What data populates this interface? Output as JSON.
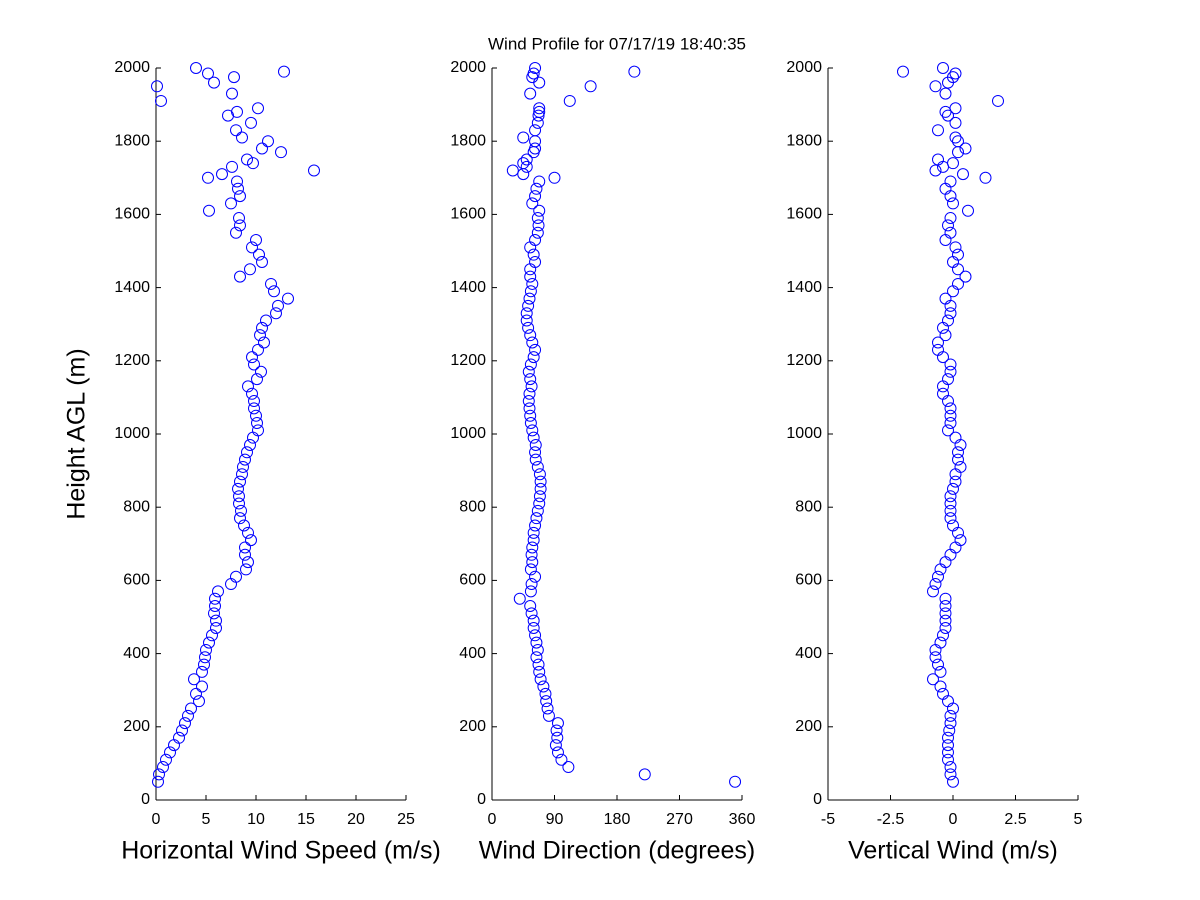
{
  "title": "Wind Profile for  07/17/19 18:40:35",
  "chart_data": [
    {
      "type": "scatter",
      "xlabel": "Horizontal Wind Speed (m/s)",
      "ylabel": "Height AGL (m)",
      "color": "#0000ff",
      "xlim": [
        0,
        25
      ],
      "xticks": [
        0,
        5,
        10,
        15,
        20,
        25
      ],
      "ylim": [
        0,
        2000
      ],
      "yticks": [
        0,
        200,
        400,
        600,
        800,
        1000,
        1200,
        1400,
        1600,
        1800,
        2000
      ],
      "x": [
        0.2,
        0.3,
        0.7,
        1.0,
        1.4,
        1.8,
        2.3,
        2.6,
        2.9,
        3.2,
        3.5,
        4.3,
        4.0,
        4.6,
        3.8,
        4.6,
        4.8,
        4.9,
        5.0,
        5.3,
        5.6,
        6.0,
        6.0,
        5.8,
        5.9,
        5.9,
        6.2,
        7.5,
        8.0,
        9.0,
        9.2,
        8.9,
        8.9,
        9.5,
        9.2,
        8.8,
        8.4,
        8.5,
        8.3,
        8.3,
        8.2,
        8.4,
        8.6,
        8.7,
        8.9,
        9.1,
        9.4,
        9.7,
        10.2,
        10.1,
        10.0,
        9.8,
        9.8,
        9.6,
        9.2,
        10.1,
        10.5,
        9.8,
        9.6,
        10.2,
        10.8,
        10.4,
        10.6,
        11.0,
        12.0,
        12.2,
        13.2,
        11.8,
        11.5,
        8.4,
        9.4,
        10.6,
        10.3,
        9.6,
        10.0,
        8.0,
        8.4,
        8.3,
        5.3,
        7.5,
        8.4,
        8.2,
        8.1,
        5.2,
        6.6,
        15.8,
        7.6,
        9.7,
        9.1,
        12.5,
        10.6,
        11.2,
        8.6,
        8.0,
        9.5,
        7.2,
        8.1,
        10.2,
        0.5,
        7.6,
        0.1,
        5.8,
        7.8,
        5.2,
        12.8,
        4.0
      ],
      "y": [
        50,
        70,
        90,
        110,
        130,
        150,
        170,
        190,
        210,
        230,
        250,
        270,
        290,
        310,
        330,
        350,
        370,
        390,
        410,
        430,
        450,
        470,
        490,
        510,
        530,
        550,
        570,
        590,
        610,
        630,
        650,
        670,
        690,
        710,
        730,
        750,
        770,
        790,
        810,
        830,
        850,
        870,
        890,
        910,
        930,
        950,
        970,
        990,
        1010,
        1030,
        1050,
        1070,
        1090,
        1110,
        1130,
        1150,
        1170,
        1190,
        1210,
        1230,
        1250,
        1270,
        1290,
        1310,
        1330,
        1350,
        1370,
        1390,
        1410,
        1430,
        1450,
        1470,
        1490,
        1510,
        1530,
        1550,
        1570,
        1590,
        1610,
        1630,
        1650,
        1670,
        1690,
        1700,
        1710,
        1720,
        1730,
        1740,
        1750,
        1770,
        1780,
        1800,
        1810,
        1830,
        1850,
        1870,
        1880,
        1890,
        1910,
        1930,
        1950,
        1960,
        1975,
        1985,
        1990,
        2000
      ]
    },
    {
      "type": "scatter",
      "xlabel": "Wind Direction (degrees)",
      "color": "#0000ff",
      "xlim": [
        0,
        360
      ],
      "xticks": [
        0,
        90,
        180,
        270,
        360
      ],
      "ylim": [
        0,
        2000
      ],
      "yticks": [
        0,
        200,
        400,
        600,
        800,
        1000,
        1200,
        1400,
        1600,
        1800,
        2000
      ],
      "x": [
        350,
        220,
        110,
        100,
        95,
        92,
        94,
        93,
        95,
        82,
        80,
        78,
        77,
        74,
        70,
        68,
        67,
        64,
        66,
        64,
        62,
        60,
        60,
        57,
        55,
        40,
        56,
        57,
        62,
        56,
        58,
        57,
        58,
        60,
        60,
        62,
        64,
        66,
        68,
        69,
        70,
        70,
        69,
        66,
        63,
        62,
        63,
        60,
        58,
        56,
        55,
        54,
        53,
        54,
        57,
        55,
        53,
        56,
        60,
        62,
        58,
        55,
        52,
        50,
        50,
        52,
        54,
        56,
        58,
        55,
        55,
        62,
        60,
        55,
        62,
        66,
        67,
        66,
        68,
        58,
        62,
        64,
        68,
        90,
        45,
        30,
        50,
        45,
        50,
        60,
        62,
        62,
        45,
        62,
        66,
        67,
        68,
        68,
        112,
        55,
        142,
        68,
        58,
        60,
        205,
        62
      ],
      "y": [
        50,
        70,
        90,
        110,
        130,
        150,
        170,
        190,
        210,
        230,
        250,
        270,
        290,
        310,
        330,
        350,
        370,
        390,
        410,
        430,
        450,
        470,
        490,
        510,
        530,
        550,
        570,
        590,
        610,
        630,
        650,
        670,
        690,
        710,
        730,
        750,
        770,
        790,
        810,
        830,
        850,
        870,
        890,
        910,
        930,
        950,
        970,
        990,
        1010,
        1030,
        1050,
        1070,
        1090,
        1110,
        1130,
        1150,
        1170,
        1190,
        1210,
        1230,
        1250,
        1270,
        1290,
        1310,
        1330,
        1350,
        1370,
        1390,
        1410,
        1430,
        1450,
        1470,
        1490,
        1510,
        1530,
        1550,
        1570,
        1590,
        1610,
        1630,
        1650,
        1670,
        1690,
        1700,
        1710,
        1720,
        1730,
        1740,
        1750,
        1770,
        1780,
        1800,
        1810,
        1830,
        1850,
        1870,
        1880,
        1890,
        1910,
        1930,
        1950,
        1960,
        1975,
        1985,
        1990,
        2000
      ]
    },
    {
      "type": "scatter",
      "xlabel": "Vertical Wind (m/s)",
      "color": "#0000ff",
      "xlim": [
        -5,
        5
      ],
      "xticks": [
        -5,
        -2.5,
        0,
        2.5,
        5
      ],
      "ylim": [
        0,
        2000
      ],
      "yticks": [
        0,
        200,
        400,
        600,
        800,
        1000,
        1200,
        1400,
        1600,
        1800,
        2000
      ],
      "x": [
        0,
        -0.1,
        -0.1,
        -0.2,
        -0.2,
        -0.2,
        -0.2,
        -0.15,
        -0.1,
        -0.1,
        0,
        -0.2,
        -0.4,
        -0.5,
        -0.8,
        -0.5,
        -0.6,
        -0.7,
        -0.7,
        -0.5,
        -0.4,
        -0.3,
        -0.3,
        -0.3,
        -0.3,
        -0.3,
        -0.8,
        -0.7,
        -0.6,
        -0.5,
        -0.3,
        -0.1,
        0.1,
        0.3,
        0.2,
        0,
        -0.1,
        -0.1,
        -0.1,
        -0.1,
        0,
        0.1,
        0.1,
        0.3,
        0.2,
        0.2,
        0.3,
        0.1,
        -0.2,
        -0.1,
        -0.1,
        -0.1,
        -0.2,
        -0.4,
        -0.4,
        -0.2,
        -0.1,
        -0.1,
        -0.4,
        -0.6,
        -0.6,
        -0.3,
        -0.4,
        -0.2,
        -0.1,
        -0.1,
        -0.3,
        0,
        0.2,
        0.5,
        0.2,
        0,
        0.2,
        0.1,
        -0.3,
        -0.1,
        -0.2,
        -0.1,
        0.6,
        0,
        -0.1,
        -0.3,
        -0.1,
        1.3,
        0.4,
        -0.7,
        -0.4,
        0,
        -0.6,
        0.2,
        0.5,
        0.2,
        0.1,
        -0.6,
        0.1,
        -0.2,
        -0.3,
        0.1,
        1.8,
        -0.3,
        -0.7,
        -0.2,
        0,
        0.1,
        -2.0,
        -0.4
      ],
      "y": [
        50,
        70,
        90,
        110,
        130,
        150,
        170,
        190,
        210,
        230,
        250,
        270,
        290,
        310,
        330,
        350,
        370,
        390,
        410,
        430,
        450,
        470,
        490,
        510,
        530,
        550,
        570,
        590,
        610,
        630,
        650,
        670,
        690,
        710,
        730,
        750,
        770,
        790,
        810,
        830,
        850,
        870,
        890,
        910,
        930,
        950,
        970,
        990,
        1010,
        1030,
        1050,
        1070,
        1090,
        1110,
        1130,
        1150,
        1170,
        1190,
        1210,
        1230,
        1250,
        1270,
        1290,
        1310,
        1330,
        1350,
        1370,
        1390,
        1410,
        1430,
        1450,
        1470,
        1490,
        1510,
        1530,
        1550,
        1570,
        1590,
        1610,
        1630,
        1650,
        1670,
        1690,
        1700,
        1710,
        1720,
        1730,
        1740,
        1750,
        1770,
        1780,
        1800,
        1810,
        1830,
        1850,
        1870,
        1880,
        1890,
        1910,
        1930,
        1950,
        1960,
        1975,
        1985,
        1990,
        2000
      ]
    }
  ]
}
